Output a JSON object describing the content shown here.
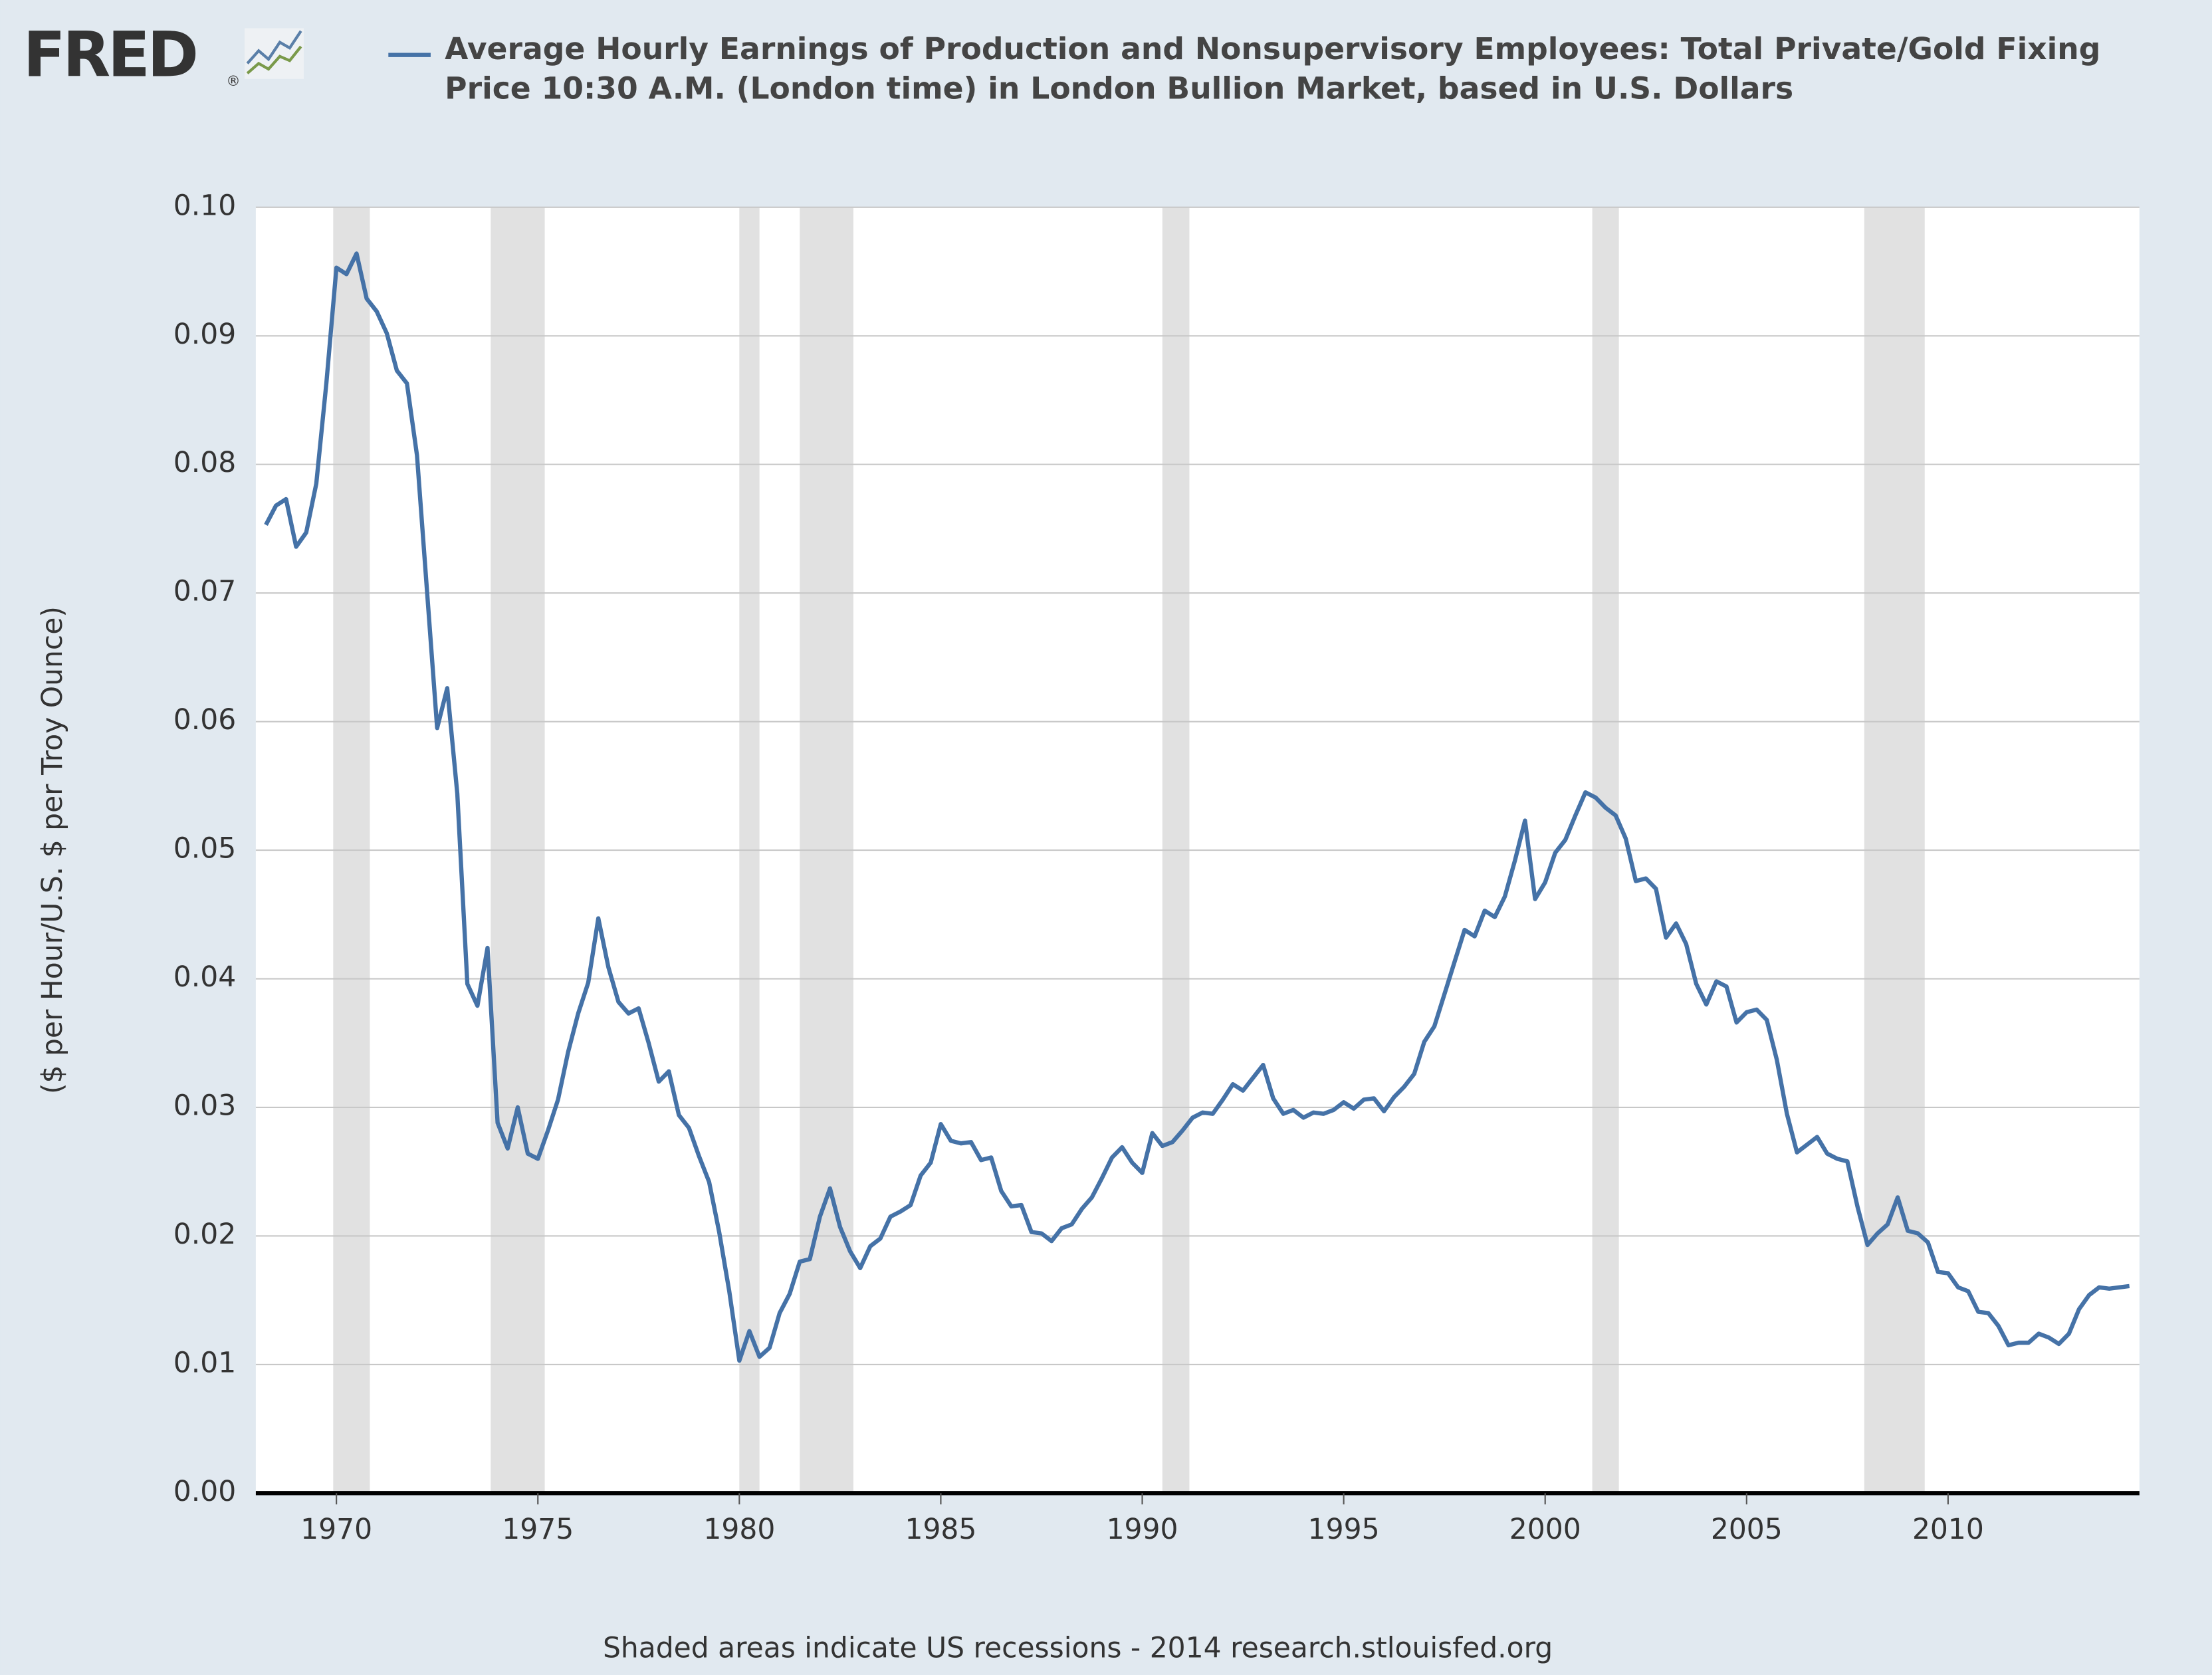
{
  "brand": {
    "name": "FRED",
    "mark": "®"
  },
  "chart_data": {
    "type": "line",
    "y_label": "($ per Hour/U.S. $ per Troy Ounce)",
    "footer": "Shaded areas indicate US recessions - 2014 research.stlouisfed.org",
    "xlim": [
      1968,
      2014.75
    ],
    "xticks": [
      1970,
      1975,
      1980,
      1985,
      1990,
      1995,
      2000,
      2005,
      2010
    ],
    "ylim": [
      0,
      0.1
    ],
    "yticks": [
      {
        "value": 0,
        "label": "0.00"
      },
      0.01,
      0.02,
      0.03,
      0.04,
      0.05,
      0.06,
      0.07,
      0.08,
      0.09,
      {
        "value": 0.1,
        "label": "0.10"
      }
    ],
    "grid": true,
    "recessions": [
      [
        1969.92,
        1970.83
      ],
      [
        1973.83,
        1975.17
      ],
      [
        1980,
        1980.5
      ],
      [
        1981.5,
        1982.83
      ],
      [
        1990.5,
        1991.17
      ],
      [
        2001.17,
        2001.83
      ],
      [
        2007.92,
        2009.42
      ]
    ],
    "recession_color": "#e1e1e1",
    "x": [
      1968.25,
      1968.5,
      1968.75,
      1969,
      1969.25,
      1969.5,
      1969.75,
      1970,
      1970.25,
      1970.5,
      1970.75,
      1971,
      1971.25,
      1971.5,
      1971.75,
      1972,
      1972.25,
      1972.5,
      1972.75,
      1973,
      1973.25,
      1973.5,
      1973.75,
      1974,
      1974.25,
      1974.5,
      1974.75,
      1975,
      1975.25,
      1975.5,
      1975.75,
      1976,
      1976.25,
      1976.5,
      1976.75,
      1977,
      1977.25,
      1977.5,
      1977.75,
      1978,
      1978.25,
      1978.5,
      1978.75,
      1979,
      1979.25,
      1979.5,
      1979.75,
      1980,
      1980.25,
      1980.5,
      1980.75,
      1981,
      1981.25,
      1981.5,
      1981.75,
      1982,
      1982.25,
      1982.5,
      1982.75,
      1983,
      1983.25,
      1983.5,
      1983.75,
      1984,
      1984.25,
      1984.5,
      1984.75,
      1985,
      1985.25,
      1985.5,
      1985.75,
      1986,
      1986.25,
      1986.5,
      1986.75,
      1987,
      1987.25,
      1987.5,
      1987.75,
      1988,
      1988.25,
      1988.5,
      1988.75,
      1989,
      1989.25,
      1989.5,
      1989.75,
      1990,
      1990.25,
      1990.5,
      1990.75,
      1991,
      1991.25,
      1991.5,
      1991.75,
      1992,
      1992.25,
      1992.5,
      1992.75,
      1993,
      1993.25,
      1993.5,
      1993.75,
      1994,
      1994.25,
      1994.5,
      1994.75,
      1995,
      1995.25,
      1995.5,
      1995.75,
      1996,
      1996.25,
      1996.5,
      1996.75,
      1997,
      1997.25,
      1997.5,
      1997.75,
      1998,
      1998.25,
      1998.5,
      1998.75,
      1999,
      1999.25,
      1999.5,
      1999.75,
      2000,
      2000.25,
      2000.5,
      2000.75,
      2001,
      2001.25,
      2001.5,
      2001.75,
      2002,
      2002.25,
      2002.5,
      2002.75,
      2003,
      2003.25,
      2003.5,
      2003.75,
      2004,
      2004.25,
      2004.5,
      2004.75,
      2005,
      2005.25,
      2005.5,
      2005.75,
      2006,
      2006.25,
      2006.5,
      2006.75,
      2007,
      2007.25,
      2007.5,
      2007.75,
      2008,
      2008.25,
      2008.5,
      2008.75,
      2009,
      2009.25,
      2009.5,
      2009.75,
      2010,
      2010.25,
      2010.5,
      2010.75,
      2011,
      2011.25,
      2011.5,
      2011.75,
      2012,
      2012.25,
      2012.5,
      2012.75,
      2013,
      2013.25,
      2013.5,
      2013.75,
      2014,
      2014.25,
      2014.5
    ],
    "series": [
      {
        "name": "Average Hourly Earnings of Production and Nonsupervisory Employees: Total Private/Gold Fixing Price 10:30 A.M. (London time) in London Bullion Market, based in U.S. Dollars",
        "color": "#4572a7",
        "values": [
          0.0753,
          0.0768,
          0.0773,
          0.0736,
          0.0747,
          0.0785,
          0.0863,
          0.0953,
          0.0948,
          0.0964,
          0.0929,
          0.0919,
          0.0902,
          0.0873,
          0.0863,
          0.0807,
          0.0701,
          0.0595,
          0.0626,
          0.0544,
          0.0396,
          0.0379,
          0.0424,
          0.0288,
          0.0268,
          0.03,
          0.0264,
          0.026,
          0.0282,
          0.0306,
          0.0343,
          0.0373,
          0.0397,
          0.0447,
          0.0409,
          0.0382,
          0.0373,
          0.0377,
          0.035,
          0.032,
          0.0328,
          0.0294,
          0.0284,
          0.0262,
          0.0242,
          0.0203,
          0.0157,
          0.0103,
          0.0126,
          0.0106,
          0.0113,
          0.014,
          0.0155,
          0.018,
          0.0182,
          0.0215,
          0.0237,
          0.0207,
          0.0188,
          0.0175,
          0.0192,
          0.0198,
          0.0215,
          0.0219,
          0.0224,
          0.0247,
          0.0257,
          0.0287,
          0.0274,
          0.0272,
          0.0273,
          0.0259,
          0.0261,
          0.0235,
          0.0223,
          0.0224,
          0.0203,
          0.0202,
          0.0196,
          0.0206,
          0.0209,
          0.0221,
          0.023,
          0.0245,
          0.0261,
          0.0269,
          0.0257,
          0.0249,
          0.028,
          0.027,
          0.0273,
          0.0282,
          0.0292,
          0.0296,
          0.0295,
          0.0306,
          0.0318,
          0.0313,
          0.0323,
          0.0333,
          0.0307,
          0.0295,
          0.0298,
          0.0292,
          0.0296,
          0.0295,
          0.0298,
          0.0304,
          0.0299,
          0.0306,
          0.0307,
          0.0297,
          0.0308,
          0.0316,
          0.0326,
          0.0351,
          0.0363,
          0.0388,
          0.0413,
          0.0438,
          0.0433,
          0.0453,
          0.0448,
          0.0464,
          0.0492,
          0.0523,
          0.0462,
          0.0475,
          0.0498,
          0.0508,
          0.0527,
          0.0545,
          0.0541,
          0.0533,
          0.0527,
          0.0509,
          0.0476,
          0.0478,
          0.047,
          0.0432,
          0.0443,
          0.0427,
          0.0396,
          0.038,
          0.0398,
          0.0394,
          0.0366,
          0.0374,
          0.0376,
          0.0368,
          0.0337,
          0.0295,
          0.0265,
          0.0271,
          0.0277,
          0.0264,
          0.026,
          0.0258,
          0.0223,
          0.0193,
          0.0202,
          0.0209,
          0.023,
          0.0204,
          0.0202,
          0.0195,
          0.0172,
          0.0171,
          0.016,
          0.0157,
          0.0141,
          0.014,
          0.013,
          0.0115,
          0.0117,
          0.0117,
          0.0124,
          0.0121,
          0.0116,
          0.0124,
          0.0143,
          0.0154,
          0.016,
          0.0159,
          0.016,
          0.0161
        ]
      }
    ]
  }
}
